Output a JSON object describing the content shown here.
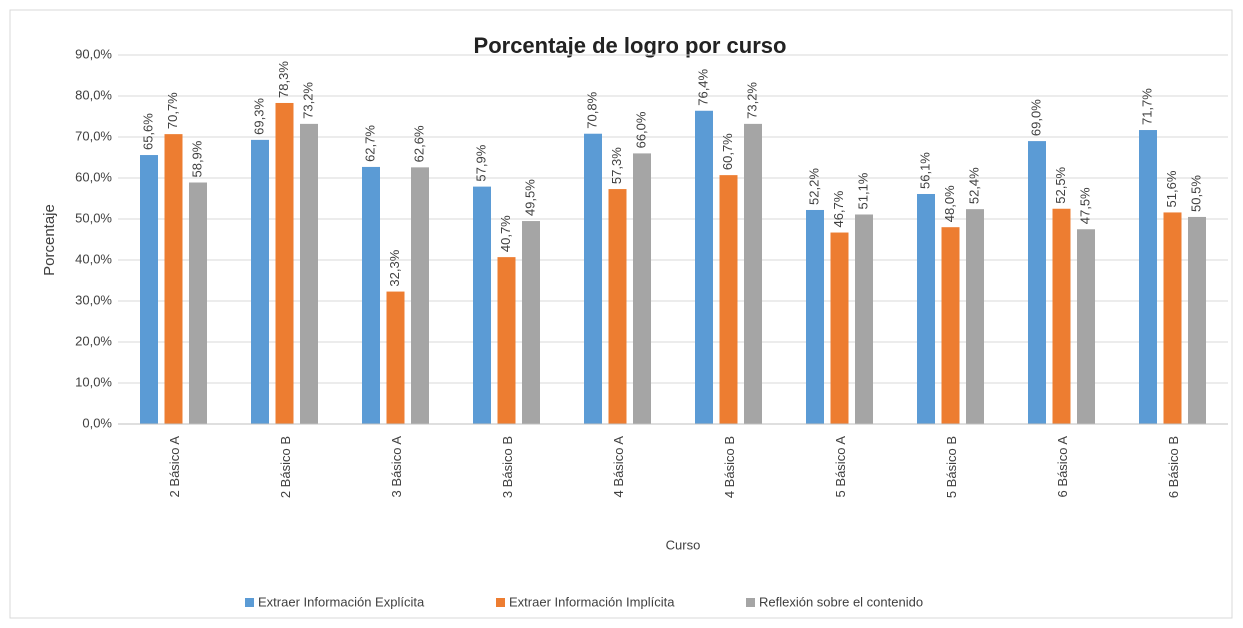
{
  "chart_data": {
    "type": "bar",
    "title": "Porcentaje de logro por curso",
    "x_label": "Curso",
    "y_label": "Porcentaje",
    "categories": [
      "2 Básico A",
      "2 Básico B",
      "3 Básico A",
      "3 Básico B",
      "4 Básico A",
      "4 Básico B",
      "5 Básico A",
      "5 Básico B",
      "6 Básico A",
      "6 Básico B"
    ],
    "series": [
      {
        "name": "Extraer Información Explícita",
        "color": "#5b9bd5",
        "values": [
          65.6,
          69.3,
          62.7,
          57.9,
          70.8,
          76.4,
          52.2,
          56.1,
          69.0,
          71.7
        ],
        "value_labels": [
          "65,6%",
          "69,3%",
          "62,7%",
          "57,9%",
          "70,8%",
          "76,4%",
          "52,2%",
          "56,1%",
          "69,0%",
          "71,7%"
        ]
      },
      {
        "name": "Extraer Información Implícita",
        "color": "#ed7d31",
        "values": [
          70.7,
          78.3,
          32.3,
          40.7,
          57.3,
          60.7,
          46.7,
          48.0,
          52.5,
          51.6
        ],
        "value_labels": [
          "70,7%",
          "78,3%",
          "32,3%",
          "40,7%",
          "57,3%",
          "60,7%",
          "46,7%",
          "48,0%",
          "52,5%",
          "51,6%"
        ]
      },
      {
        "name": "Reflexión sobre el contenido",
        "color": "#a5a5a5",
        "values": [
          58.9,
          73.2,
          62.6,
          49.5,
          66.0,
          73.2,
          51.1,
          52.4,
          47.5,
          50.5
        ],
        "value_labels": [
          "58,9%",
          "73,2%",
          "62,6%",
          "49,5%",
          "66,0%",
          "73,2%",
          "51,1%",
          "52,4%",
          "47,5%",
          "50,5%"
        ]
      }
    ],
    "ylim": [
      0,
      90
    ],
    "yticks": [
      {
        "value": 0,
        "label": "0,0%"
      },
      {
        "value": 10,
        "label": "10,0%"
      },
      {
        "value": 20,
        "label": "20,0%"
      },
      {
        "value": 30,
        "label": "30,0%"
      },
      {
        "value": 40,
        "label": "40,0%"
      },
      {
        "value": 50,
        "label": "50,0%"
      },
      {
        "value": 60,
        "label": "60,0%"
      },
      {
        "value": 70,
        "label": "70,0%"
      },
      {
        "value": 80,
        "label": "80,0%"
      },
      {
        "value": 90,
        "label": "90,0%"
      }
    ],
    "grid": true,
    "legend": "bottom"
  }
}
